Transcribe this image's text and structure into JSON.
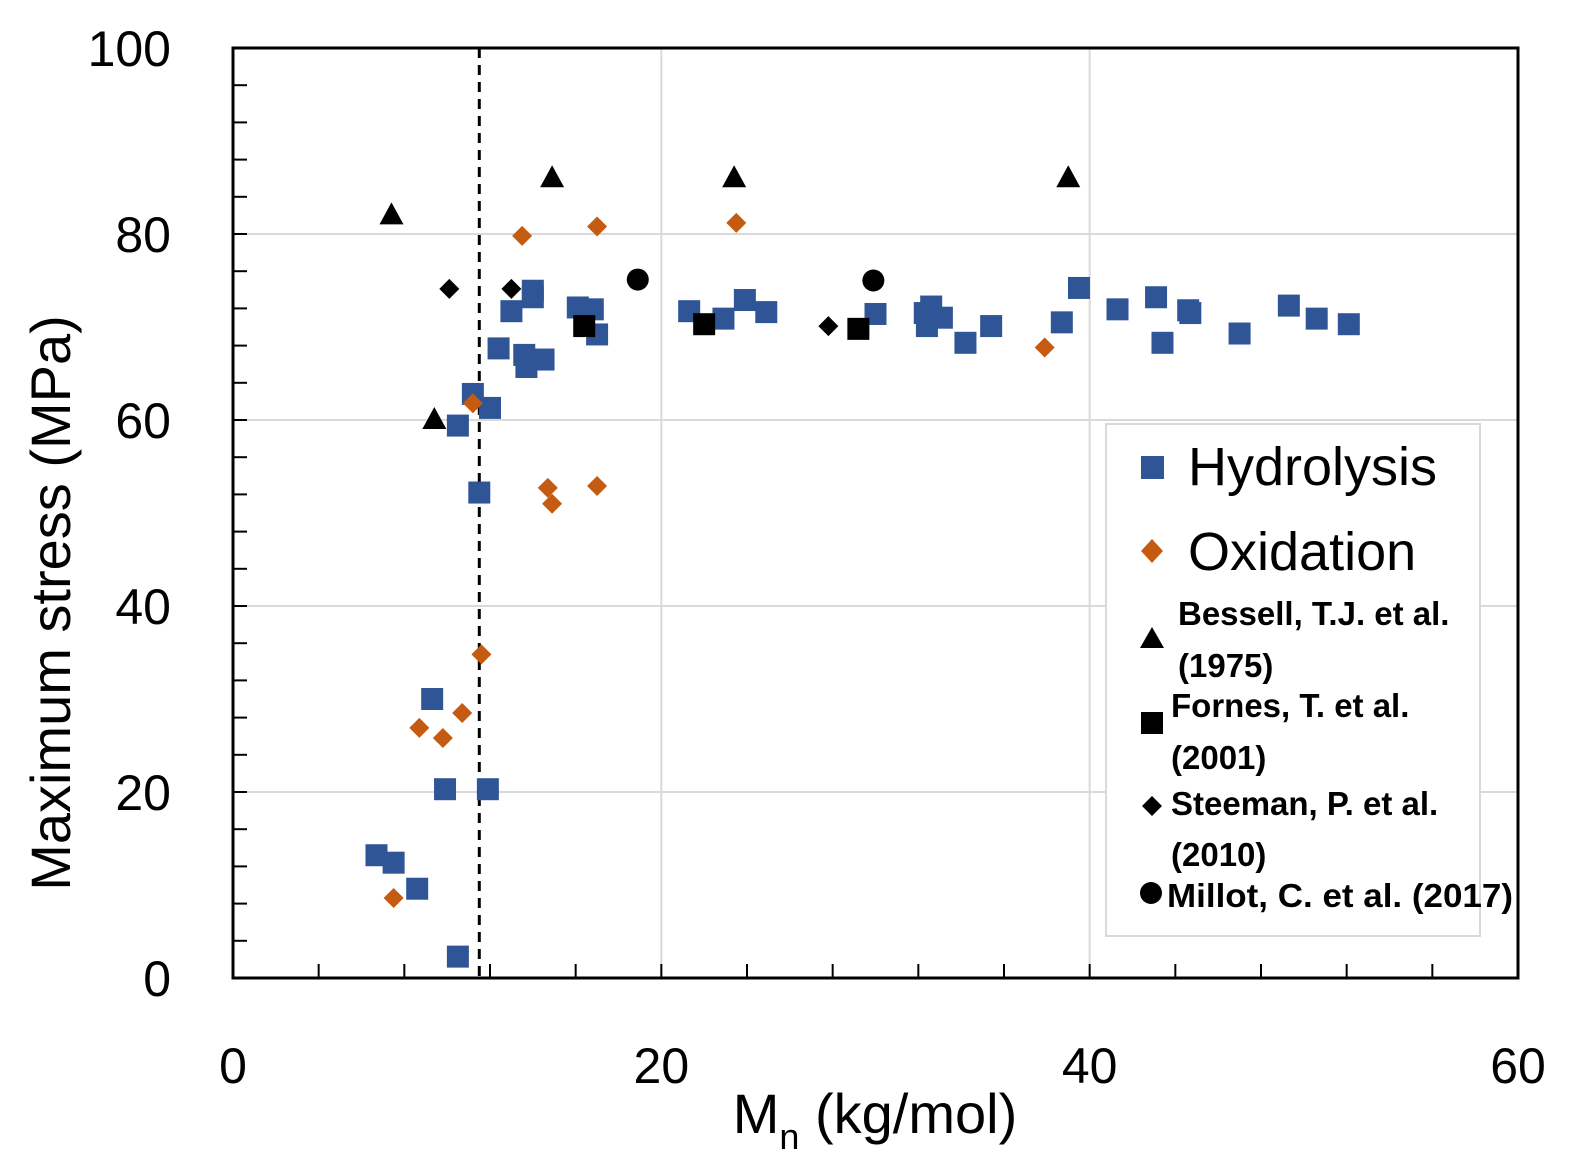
{
  "chart_data": {
    "type": "scatter",
    "title": "",
    "xlabel": "M",
    "xlabel_subscript": "n",
    "xlabel_suffix": " (kg/mol)",
    "ylabel": "Maximum stress (MPa)",
    "xlim": [
      0,
      60
    ],
    "ylim": [
      0,
      100
    ],
    "x_ticks": [
      0,
      20,
      40,
      60
    ],
    "y_ticks": [
      0,
      20,
      40,
      60,
      80,
      100
    ],
    "x_minor_step": 4,
    "y_minor_step": 4,
    "grid": true,
    "grid_x": [
      20,
      40
    ],
    "grid_y": [
      20,
      40,
      60,
      80
    ],
    "reference_line_x": 11.5,
    "legend_position": "right",
    "colors": {
      "hydrolysis": "#2f5597",
      "oxidation": "#c55a11",
      "literature": "#000000"
    },
    "series": [
      {
        "name": "Hydrolysis",
        "marker": "square",
        "color": "#2f5597",
        "points": [
          [
            6.7,
            13.2
          ],
          [
            7.5,
            12.4
          ],
          [
            8.6,
            9.6
          ],
          [
            9.3,
            30
          ],
          [
            9.9,
            20.3
          ],
          [
            10.5,
            2.3
          ],
          [
            10.5,
            59.4
          ],
          [
            11.2,
            62.8
          ],
          [
            11.5,
            52.2
          ],
          [
            11.9,
            20.3
          ],
          [
            12.0,
            61.3
          ],
          [
            12.4,
            67.7
          ],
          [
            13.0,
            71.7
          ],
          [
            13.6,
            67
          ],
          [
            13.7,
            65.7
          ],
          [
            14.0,
            73.2
          ],
          [
            14.0,
            73.9
          ],
          [
            14.5,
            66.5
          ],
          [
            16.1,
            72.1
          ],
          [
            16.8,
            71.9
          ],
          [
            17.0,
            69.2
          ],
          [
            21.3,
            71.7
          ],
          [
            22.9,
            70.9
          ],
          [
            23.9,
            72.9
          ],
          [
            24.9,
            71.6
          ],
          [
            30.0,
            71.4
          ],
          [
            32.3,
            71.5
          ],
          [
            32.4,
            70.1
          ],
          [
            32.6,
            72.2
          ],
          [
            33.1,
            71.0
          ],
          [
            34.2,
            68.3
          ],
          [
            35.4,
            70.1
          ],
          [
            38.7,
            70.5
          ],
          [
            39.5,
            74.2
          ],
          [
            41.3,
            71.9
          ],
          [
            43.1,
            73.2
          ],
          [
            43.4,
            68.3
          ],
          [
            44.6,
            71.8
          ],
          [
            44.7,
            71.5
          ],
          [
            47.0,
            69.3
          ],
          [
            49.3,
            72.3
          ],
          [
            50.6,
            70.9
          ],
          [
            52.1,
            70.3
          ]
        ]
      },
      {
        "name": "Oxidation",
        "marker": "diamond",
        "color": "#c55a11",
        "points": [
          [
            7.5,
            8.6
          ],
          [
            8.7,
            26.9
          ],
          [
            9.8,
            25.8
          ],
          [
            10.7,
            28.5
          ],
          [
            11.2,
            61.8
          ],
          [
            11.6,
            34.8
          ],
          [
            13.5,
            79.8
          ],
          [
            14.7,
            52.7
          ],
          [
            14.9,
            51.0
          ],
          [
            17.0,
            80.8
          ],
          [
            17.0,
            52.9
          ],
          [
            23.5,
            81.2
          ],
          [
            37.9,
            67.8
          ]
        ]
      },
      {
        "name": "Bessell, T.J. et al. (1975)",
        "marker": "triangle",
        "color": "#000000",
        "points": [
          [
            7.4,
            82
          ],
          [
            9.4,
            60
          ],
          [
            14.9,
            86
          ],
          [
            23.4,
            86
          ],
          [
            39.0,
            86
          ]
        ]
      },
      {
        "name": "Fornes, T. et al. (2001)",
        "marker": "square",
        "color": "#000000",
        "points": [
          [
            16.4,
            70.1
          ],
          [
            22.0,
            70.3
          ],
          [
            29.2,
            69.8
          ]
        ]
      },
      {
        "name": "Steeman, P. et al. (2010)",
        "marker": "diamond",
        "color": "#000000",
        "points": [
          [
            10.1,
            74.1
          ],
          [
            13.0,
            74.1
          ],
          [
            27.8,
            70.1
          ]
        ]
      },
      {
        "name": "Millot, C. et al. (2017)",
        "marker": "circle",
        "color": "#000000",
        "points": [
          [
            18.9,
            75.1
          ],
          [
            29.9,
            75.0
          ]
        ]
      }
    ],
    "legend": {
      "hydrolysis": "Hydrolysis",
      "oxidation": "Oxidation",
      "bessell_line1": "Bessell, T.J. et al.",
      "bessell_line2": "(1975)",
      "fornes_line1": "Fornes, T. et al.",
      "fornes_line2": "(2001)",
      "steeman_line1": "Steeman, P. et al.",
      "steeman_line2": "(2010)",
      "millot": "Millot, C. et al. (2017)"
    }
  }
}
